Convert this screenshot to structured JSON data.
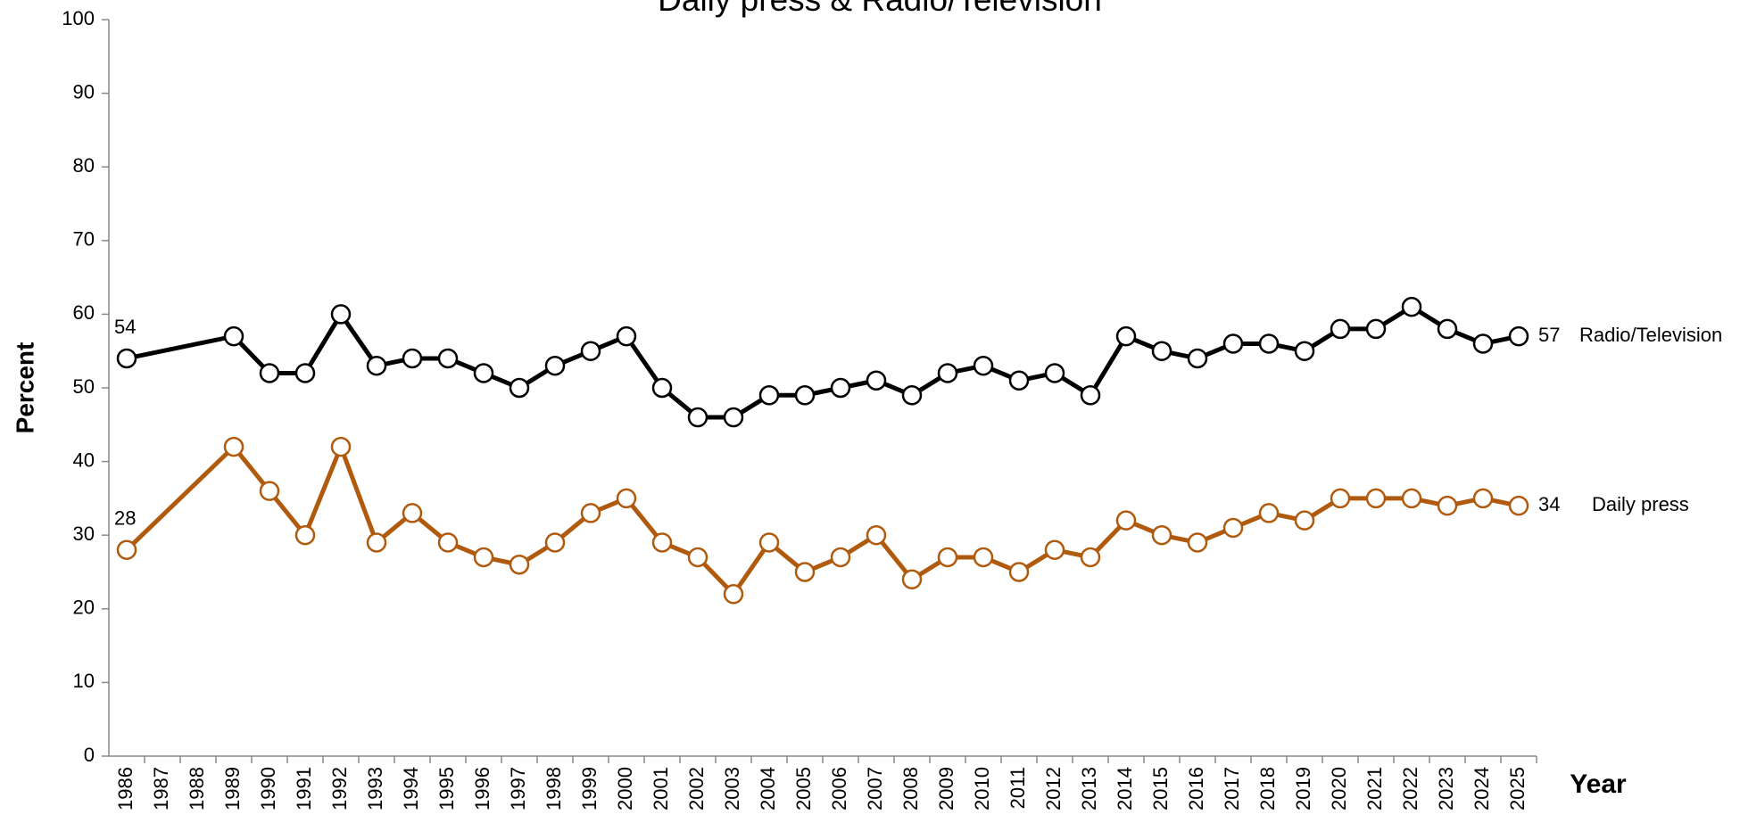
{
  "chart_data": {
    "type": "line",
    "title": "Daily press & Radio/Television",
    "xlabel": "Year",
    "ylabel": "Percent",
    "x": [
      1986,
      1989,
      1990,
      1991,
      1992,
      1993,
      1994,
      1995,
      1996,
      1997,
      1998,
      1999,
      2000,
      2001,
      2002,
      2003,
      2004,
      2005,
      2006,
      2007,
      2008,
      2009,
      2010,
      2011,
      2012,
      2013,
      2014,
      2015,
      2016,
      2017,
      2018,
      2019,
      2020,
      2021,
      2022,
      2023,
      2024,
      2025
    ],
    "series": [
      {
        "name": "Radio/Television",
        "color": "#000000",
        "values": [
          54,
          57,
          52,
          52,
          60,
          53,
          54,
          54,
          52,
          50,
          53,
          55,
          57,
          50,
          46,
          46,
          49,
          49,
          50,
          51,
          49,
          52,
          53,
          51,
          52,
          49,
          57,
          55,
          54,
          56,
          56,
          55,
          58,
          58,
          61,
          58,
          56,
          57
        ]
      },
      {
        "name": "Daily press",
        "color": "#b05a0e",
        "values": [
          28,
          42,
          36,
          30,
          42,
          29,
          33,
          29,
          27,
          26,
          29,
          33,
          35,
          29,
          27,
          22,
          29,
          25,
          27,
          30,
          24,
          27,
          27,
          25,
          28,
          27,
          32,
          30,
          29,
          31,
          33,
          32,
          35,
          35,
          35,
          34,
          35,
          34
        ]
      }
    ],
    "xlim": [
      1985.5,
      2025.5
    ],
    "xticks": [
      1986,
      1987,
      1988,
      1989,
      1990,
      1991,
      1992,
      1993,
      1994,
      1995,
      1996,
      1997,
      1998,
      1999,
      2000,
      2001,
      2002,
      2003,
      2004,
      2005,
      2006,
      2007,
      2008,
      2009,
      2010,
      2011,
      2012,
      2013,
      2014,
      2015,
      2016,
      2017,
      2018,
      2019,
      2020,
      2021,
      2022,
      2023,
      2024,
      2025
    ],
    "ylim": [
      0,
      100
    ],
    "yticks": [
      0,
      10,
      20,
      30,
      40,
      50,
      60,
      70,
      80,
      90,
      100
    ],
    "grid": false
  }
}
